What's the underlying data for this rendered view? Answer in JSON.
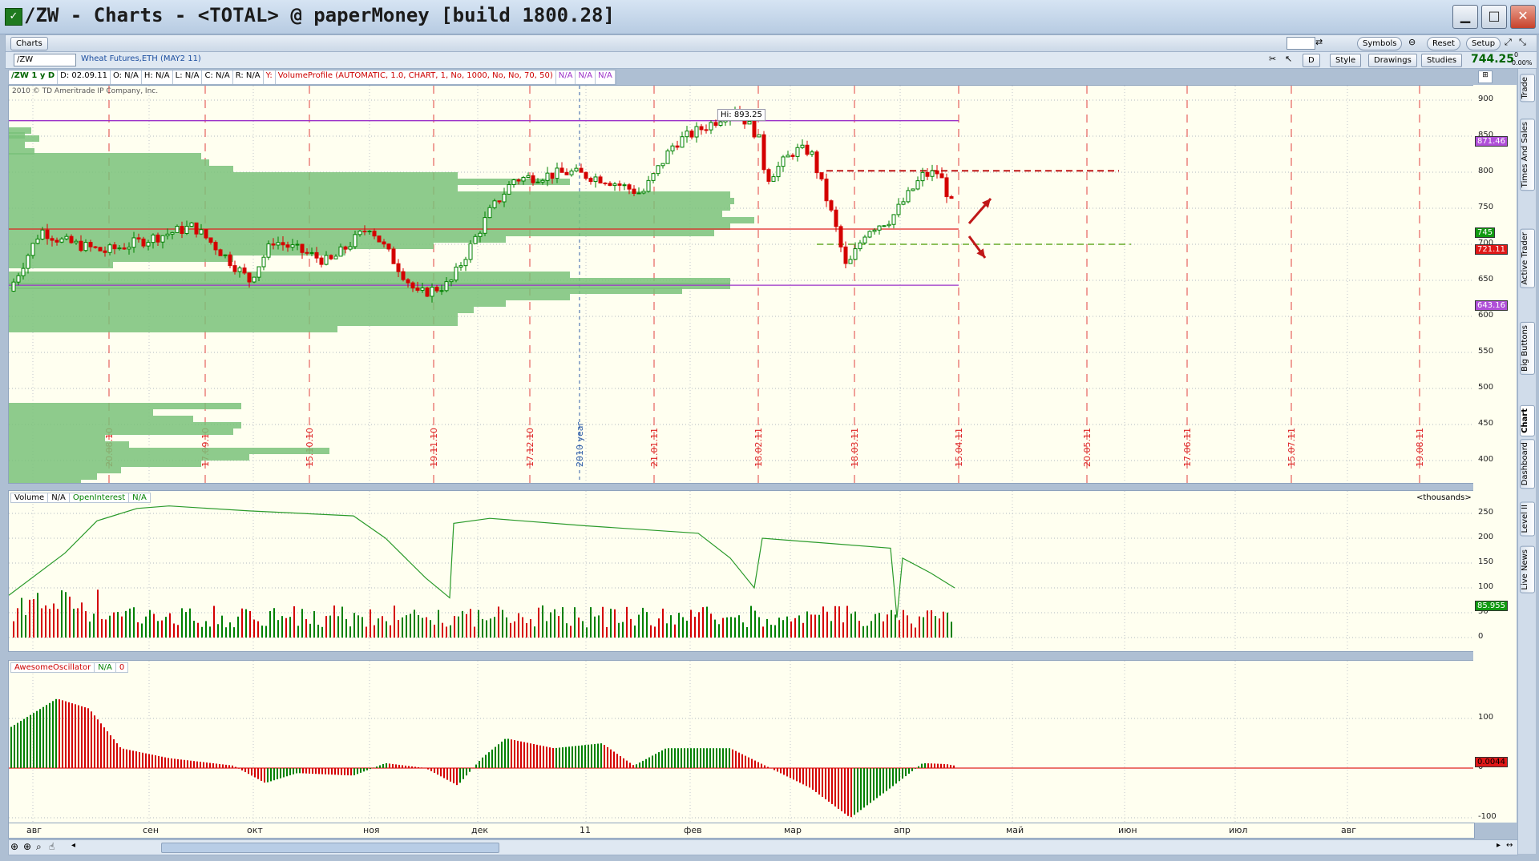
{
  "window": {
    "title": "/ZW - Charts - <TOTAL> @ paperMoney [build 1800.28]",
    "app_icon": "thinkorswim-icon"
  },
  "toolbar": {
    "tab_charts": "Charts",
    "symbols": "Symbols",
    "reset": "Reset",
    "setup": "Setup",
    "period_button": "D",
    "style": "Style",
    "drawings": "Drawings",
    "studies": "Studies",
    "last_price": "744.25",
    "change_a": "0",
    "change_b": "0.00%"
  },
  "symbol": {
    "value": "/ZW",
    "description": "Wheat Futures,ETH (MAY2 11)"
  },
  "infobar": {
    "aggregation": "/ZW 1 y D",
    "date": "D: 02.09.11",
    "open": "O: N/A",
    "high": "H: N/A",
    "low": "L: N/A",
    "close": "C: N/A",
    "range": "R: N/A",
    "y": "Y:",
    "study": "VolumeProfile (AUTOMATIC, 1.0, CHART, 1, No, 1000, No, No, 70, 50)",
    "na1": "N/A",
    "na2": "N/A",
    "na3": "N/A"
  },
  "copyright": "2010 © TD Ameritrade IP Company, Inc.",
  "hi_label": "Hi: 893.25",
  "price_axis": [
    "900",
    "850",
    "800",
    "750",
    "700",
    "650",
    "600",
    "550",
    "500",
    "450",
    "400"
  ],
  "price_tags": {
    "upper": "871.46",
    "last": "745",
    "poc": "721.11",
    "lower": "643.16"
  },
  "period_labels": [
    "20.08.10",
    "17.09.10",
    "15.10.10",
    "19.11.10",
    "17.12.10",
    "2010 year",
    "21.01.11",
    "18.02.11",
    "18.03.11",
    "15.04.11",
    "20.05.11",
    "17.06.11",
    "15.07.11",
    "19.08.11"
  ],
  "volume": {
    "label": "Volume",
    "na": "N/A",
    "oi_label": "OpenInterest",
    "oi_na": "N/A",
    "units": "<thousands>",
    "axis": [
      "250",
      "200",
      "150",
      "100",
      "50",
      "0"
    ],
    "tag": "85.955"
  },
  "ao": {
    "label": "AwesomeOscillator",
    "na": "N/A",
    "zero": "0",
    "axis": [
      "100",
      "0",
      "-100"
    ],
    "tag": "0.0044"
  },
  "months": [
    "авг",
    "сен",
    "окт",
    "ноя",
    "дек",
    "11",
    "фев",
    "мар",
    "апр",
    "май",
    "июн",
    "июл",
    "авг"
  ],
  "side_tabs": [
    "Trade",
    "Times And Sales",
    "Active Trader",
    "Big Buttons",
    "Chart",
    "Dashboard",
    "Level II",
    "Live News"
  ],
  "colors": {
    "up": "#008000",
    "down": "#d40000",
    "profile": "#7ac27a",
    "grid_dashed": "#e04040",
    "purple": "#9b30c8",
    "bg": "#fffff0"
  }
}
